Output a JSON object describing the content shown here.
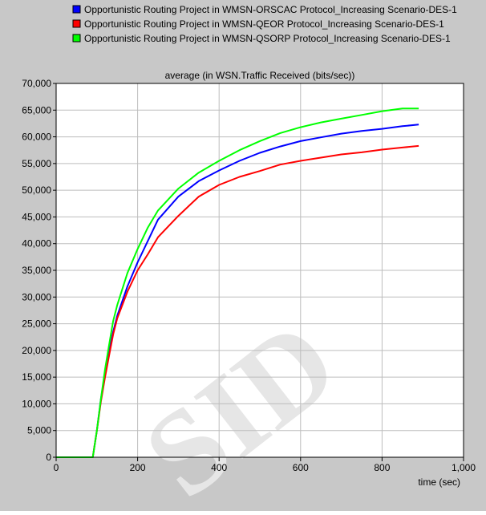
{
  "chart_data": {
    "type": "line",
    "title": "average (in WSN.Traffic Received (bits/sec))",
    "xlabel": "time (sec)",
    "ylabel": "",
    "xlim": [
      0,
      1000
    ],
    "ylim": [
      0,
      70000
    ],
    "x_ticks": [
      "0",
      "200",
      "400",
      "600",
      "800",
      "1,000"
    ],
    "y_ticks": [
      "0",
      "5,000",
      "10,000",
      "15,000",
      "20,000",
      "25,000",
      "30,000",
      "35,000",
      "40,000",
      "45,000",
      "50,000",
      "55,000",
      "60,000",
      "65,000",
      "70,000"
    ],
    "grid": true,
    "legend_position": "top",
    "watermark": "SID",
    "colors": {
      "background": "#c8c8c8",
      "plot_area": "#ffffff",
      "grid": "#bdbdbd"
    },
    "series": [
      {
        "name": "Opportunistic Routing Project in WMSN-ORSCAC Protocol_Increasing Scenario-DES-1",
        "color": "#0000ff",
        "x": [
          0,
          90,
          100,
          110,
          120,
          130,
          140,
          150,
          175,
          200,
          225,
          250,
          300,
          350,
          400,
          450,
          500,
          550,
          600,
          650,
          700,
          750,
          800,
          850,
          890
        ],
        "y": [
          0,
          0,
          5000,
          11000,
          15500,
          20000,
          23500,
          26500,
          32000,
          36500,
          40500,
          44500,
          48800,
          51700,
          53700,
          55500,
          57000,
          58200,
          59200,
          59900,
          60600,
          61100,
          61500,
          62000,
          62300
        ]
      },
      {
        "name": "Opportunistic Routing Project in WMSN-QEOR Protocol_Increasing Scenario-DES-1",
        "color": "#ff0000",
        "x": [
          0,
          90,
          100,
          110,
          120,
          130,
          140,
          150,
          175,
          200,
          225,
          250,
          300,
          350,
          400,
          450,
          500,
          550,
          600,
          650,
          700,
          750,
          800,
          850,
          890
        ],
        "y": [
          0,
          0,
          5000,
          10500,
          15000,
          19000,
          23000,
          26000,
          31000,
          35000,
          38000,
          41200,
          45200,
          48800,
          51000,
          52500,
          53600,
          54800,
          55500,
          56100,
          56700,
          57100,
          57600,
          58000,
          58300
        ]
      },
      {
        "name": "Opportunistic Routing Project in WMSN-QSORP Protocol_Increasing Scenario-DES-1",
        "color": "#00ff00",
        "x": [
          0,
          90,
          100,
          110,
          120,
          130,
          140,
          150,
          175,
          200,
          225,
          250,
          300,
          350,
          400,
          450,
          500,
          550,
          600,
          650,
          700,
          750,
          800,
          850,
          890
        ],
        "y": [
          0,
          0,
          5000,
          11000,
          16500,
          21000,
          25500,
          28500,
          34500,
          39000,
          43000,
          46200,
          50300,
          53300,
          55500,
          57500,
          59200,
          60700,
          61800,
          62700,
          63400,
          64100,
          64800,
          65300,
          65300
        ]
      }
    ]
  }
}
